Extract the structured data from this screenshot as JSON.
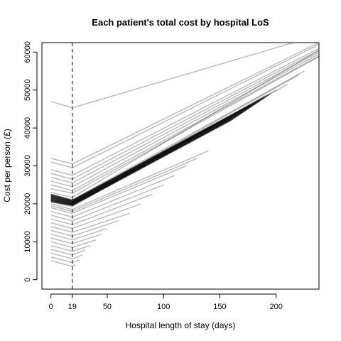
{
  "chart_data": {
    "type": "line",
    "title": "Each patient's total cost by hospital LoS",
    "xlabel": "Hospital length of stay (days)",
    "ylabel": "Cost per person (£)",
    "xlim": [
      -8,
      238
    ],
    "ylim": [
      -2500,
      62500
    ],
    "x_ticks": [
      0,
      19,
      50,
      100,
      150,
      200
    ],
    "y_ticks": [
      0,
      10000,
      20000,
      30000,
      40000,
      50000,
      60000
    ],
    "vline": {
      "x": 19,
      "style": "dashed"
    },
    "grid": false,
    "legend": "none",
    "line_color": "#b0b0b0",
    "series": [
      {
        "x": [
          0,
          19,
          238
        ],
        "y": [
          47000,
          45300,
          64500
        ]
      },
      {
        "x": [
          0,
          19,
          238
        ],
        "y": [
          32000,
          30500,
          62500
        ]
      },
      {
        "x": [
          0,
          19,
          238
        ],
        "y": [
          31000,
          29500,
          62000
        ]
      },
      {
        "x": [
          0,
          19,
          238
        ],
        "y": [
          29000,
          27500,
          61000
        ]
      },
      {
        "x": [
          0,
          19,
          238
        ],
        "y": [
          28000,
          26500,
          60500
        ]
      },
      {
        "x": [
          0,
          19,
          238
        ],
        "y": [
          27000,
          25500,
          60000
        ]
      },
      {
        "x": [
          0,
          19,
          238
        ],
        "y": [
          26000,
          24500,
          59500
        ]
      },
      {
        "x": [
          0,
          19,
          238
        ],
        "y": [
          25000,
          23500,
          59000
        ]
      },
      {
        "x": [
          0,
          19,
          238
        ],
        "y": [
          24000,
          22800,
          58800
        ]
      },
      {
        "x": [
          0,
          19,
          238
        ],
        "y": [
          23000,
          21700,
          60500
        ]
      },
      {
        "x": [
          0,
          19,
          225
        ],
        "y": [
          22500,
          21000,
          55000
        ]
      },
      {
        "x": [
          0,
          19,
          220
        ],
        "y": [
          22000,
          20500,
          54000
        ]
      },
      {
        "x": [
          0,
          19,
          210
        ],
        "y": [
          21500,
          20000,
          51500
        ]
      },
      {
        "x": [
          0,
          19,
          200
        ],
        "y": [
          21000,
          19700,
          50000
        ]
      },
      {
        "x": [
          0,
          19,
          190
        ],
        "y": [
          20500,
          19300,
          48500
        ]
      },
      {
        "x": [
          0,
          19,
          140
        ],
        "y": [
          20000,
          18500,
          34000
        ]
      },
      {
        "x": [
          0,
          19,
          130
        ],
        "y": [
          19500,
          18000,
          32000
        ]
      },
      {
        "x": [
          0,
          19,
          120
        ],
        "y": [
          19000,
          17500,
          30000
        ]
      },
      {
        "x": [
          0,
          19,
          110
        ],
        "y": [
          18000,
          16500,
          27500
        ]
      },
      {
        "x": [
          0,
          19,
          100
        ],
        "y": [
          17000,
          15500,
          25000
        ]
      },
      {
        "x": [
          0,
          19,
          90
        ],
        "y": [
          16000,
          14500,
          22500
        ]
      },
      {
        "x": [
          0,
          19,
          80
        ],
        "y": [
          15000,
          13500,
          20000
        ]
      },
      {
        "x": [
          0,
          19,
          70
        ],
        "y": [
          14000,
          12500,
          17500
        ]
      },
      {
        "x": [
          0,
          19,
          60
        ],
        "y": [
          13000,
          11500,
          15500
        ]
      },
      {
        "x": [
          0,
          19,
          50
        ],
        "y": [
          12000,
          10500,
          13500
        ]
      },
      {
        "x": [
          0,
          19,
          45
        ],
        "y": [
          11000,
          9500,
          12000
        ]
      },
      {
        "x": [
          0,
          19,
          40
        ],
        "y": [
          10000,
          8500,
          10500
        ]
      },
      {
        "x": [
          0,
          19,
          35
        ],
        "y": [
          9000,
          7500,
          9000
        ]
      },
      {
        "x": [
          0,
          19,
          30
        ],
        "y": [
          8000,
          6500,
          7800
        ]
      },
      {
        "x": [
          0,
          19,
          28
        ],
        "y": [
          7000,
          5500,
          6500
        ]
      },
      {
        "x": [
          0,
          19,
          25
        ],
        "y": [
          6000,
          4500,
          5200
        ]
      },
      {
        "x": [
          0,
          19,
          22
        ],
        "y": [
          5000,
          3500,
          3900
        ]
      }
    ],
    "bundles": [
      {
        "count": 40,
        "x0": 0,
        "x1": 19,
        "y0_start": 20500,
        "y0_end": 22500,
        "y1_start": 19500,
        "y1_end": 21000,
        "x_end_start": 160,
        "x_end_end": 195,
        "y_end_start": 42000,
        "y_end_end": 49000
      }
    ]
  }
}
